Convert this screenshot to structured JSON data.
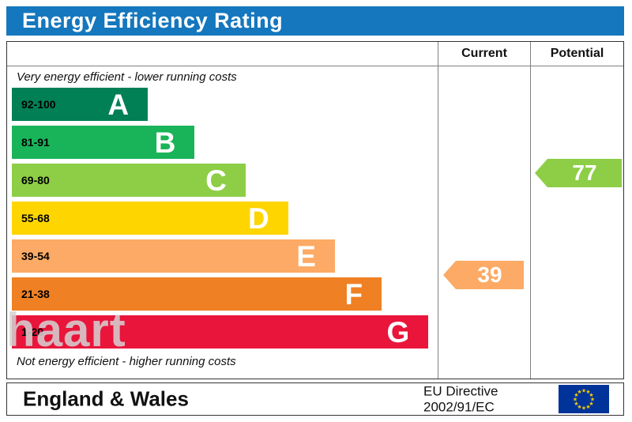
{
  "header": {
    "title": "Energy Efficiency Rating"
  },
  "table": {
    "current_label": "Current",
    "potential_label": "Potential",
    "top_caption": "Very energy efficient - lower running costs",
    "bottom_caption": "Not energy efficient - higher running costs"
  },
  "chart_data": {
    "type": "bar",
    "title": "Energy Efficiency Rating",
    "bands": [
      {
        "letter": "A",
        "range": "92-100",
        "color": "#008054",
        "width_pct": 32
      },
      {
        "letter": "B",
        "range": "81-91",
        "color": "#19b459",
        "width_pct": 43
      },
      {
        "letter": "C",
        "range": "69-80",
        "color": "#8dce46",
        "width_pct": 55
      },
      {
        "letter": "D",
        "range": "55-68",
        "color": "#ffd500",
        "width_pct": 65
      },
      {
        "letter": "E",
        "range": "39-54",
        "color": "#fcaa65",
        "width_pct": 76
      },
      {
        "letter": "F",
        "range": "21-38",
        "color": "#ef8023",
        "width_pct": 87
      },
      {
        "letter": "G",
        "range": "1-20",
        "color": "#e9153b",
        "width_pct": 98
      }
    ],
    "current": {
      "value": 39,
      "band": "E",
      "color": "#fcaa65"
    },
    "potential": {
      "value": 77,
      "band": "C",
      "color": "#8dce46"
    }
  },
  "footer": {
    "region": "England & Wales",
    "directive_line1": "EU Directive",
    "directive_line2": "2002/91/EC"
  },
  "watermark": {
    "text": "haart"
  }
}
